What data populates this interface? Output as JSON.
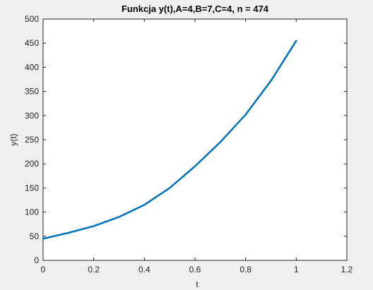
{
  "chart_data": {
    "type": "line",
    "title": "Funkcja y(t),A=4,B=7,C=4, n = 474",
    "xlabel": "t",
    "ylabel": "y(t)",
    "xlim": [
      0,
      1.2
    ],
    "ylim": [
      0,
      500
    ],
    "xticks": [
      "0",
      "0.2",
      "0.4",
      "0.6",
      "0.8",
      "1",
      "1.2"
    ],
    "yticks": [
      "0",
      "50",
      "100",
      "150",
      "200",
      "250",
      "300",
      "350",
      "400",
      "450",
      "500"
    ],
    "grid": false,
    "series": [
      {
        "color": "#0072bd",
        "x": [
          0,
          0.1,
          0.2,
          0.3,
          0.4,
          0.5,
          0.6,
          0.7,
          0.8,
          0.9,
          1.0
        ],
        "y": [
          45,
          57,
          71,
          90,
          115,
          150,
          195,
          245,
          302,
          372,
          455
        ]
      }
    ]
  },
  "colors": {
    "background": "#f0f0f0",
    "plot_area": "#ffffff",
    "axis": "#262626",
    "line": "#0072bd"
  }
}
